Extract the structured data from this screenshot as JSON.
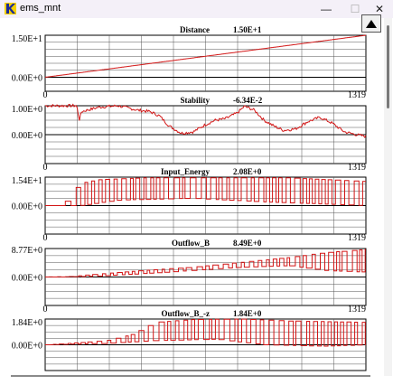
{
  "window": {
    "title": "ems_mnt",
    "minimize_icon": "minimize-icon",
    "maximize_icon": "maximize-icon",
    "close_icon": "close-icon",
    "close_glyph": "✕",
    "minimize_glyph": "—",
    "maximize_glyph": "☐"
  },
  "toolbar": {
    "scroll_up_icon": "triangle-up-icon"
  },
  "colors": {
    "trace": "#d21414",
    "grid": "#000000",
    "zero_line": "#000000"
  },
  "chart_data": [
    {
      "type": "line",
      "title": "Distance",
      "value_label": "1.50E+1",
      "y_tick_labels": [
        "1.50E+1",
        "0.00E+0"
      ],
      "x_tick_labels": [
        "0",
        "1319"
      ],
      "xlim": [
        0,
        1319
      ],
      "ylim": [
        -5,
        15
      ],
      "series": [
        {
          "values": [
            [
              0,
              0
            ],
            [
              1319,
              15
            ]
          ],
          "step": false
        }
      ]
    },
    {
      "type": "line",
      "title": "Stability",
      "value_label": "-6.34E-2",
      "y_tick_labels": [
        "1.00E+0",
        "0.00E+0"
      ],
      "x_tick_labels": [
        "0",
        "1319"
      ],
      "xlim": [
        0,
        1319
      ],
      "ylim": [
        -1,
        1
      ],
      "series": [
        {
          "values": [
            [
              0,
              1
            ],
            [
              130,
              1
            ],
            [
              140,
              0.5
            ],
            [
              150,
              0.8
            ],
            [
              220,
              0.95
            ],
            [
              300,
              1.0
            ],
            [
              380,
              0.85
            ],
            [
              430,
              0.8
            ],
            [
              470,
              0.65
            ],
            [
              510,
              0.3
            ],
            [
              560,
              0.05
            ],
            [
              610,
              0.1
            ],
            [
              660,
              0.35
            ],
            [
              700,
              0.5
            ],
            [
              740,
              0.55
            ],
            [
              790,
              0.75
            ],
            [
              820,
              0.98
            ],
            [
              860,
              0.85
            ],
            [
              900,
              0.5
            ],
            [
              940,
              0.3
            ],
            [
              980,
              0.15
            ],
            [
              1030,
              0.2
            ],
            [
              1080,
              0.45
            ],
            [
              1130,
              0.6
            ],
            [
              1180,
              0.4
            ],
            [
              1230,
              0.1
            ],
            [
              1280,
              0.0
            ],
            [
              1319,
              -0.06
            ]
          ],
          "step": false,
          "noise": 0.05
        }
      ]
    },
    {
      "type": "line",
      "title": "Input_Energy",
      "value_label": "2.08E+0",
      "y_tick_labels": [
        "1.54E+1",
        "0.00E+0"
      ],
      "x_tick_labels": [
        "0",
        "1319"
      ],
      "xlim": [
        0,
        1319
      ],
      "ylim": [
        -15.4,
        15.4
      ],
      "series": [
        {
          "values": [
            [
              0,
              0
            ],
            [
              60,
              0
            ],
            [
              80,
              2
            ],
            [
              100,
              5
            ],
            [
              140,
              12
            ],
            [
              220,
              14
            ],
            [
              400,
              15
            ],
            [
              700,
              15
            ],
            [
              1000,
              15
            ],
            [
              1319,
              13
            ]
          ],
          "step": true,
          "oscillate": true,
          "low": [
            [
              0,
              0
            ],
            [
              140,
              0
            ],
            [
              300,
              3
            ],
            [
              600,
              4
            ],
            [
              900,
              2
            ],
            [
              1319,
              0
            ]
          ]
        }
      ]
    },
    {
      "type": "line",
      "title": "Outflow_B",
      "value_label": "8.49E+0",
      "y_tick_labels": [
        "8.77E+0",
        "0.00E+0"
      ],
      "x_tick_labels": [
        "0",
        "1319"
      ],
      "xlim": [
        0,
        1319
      ],
      "ylim": [
        -8.77,
        8.77
      ],
      "series": [
        {
          "values": [
            [
              0,
              0
            ],
            [
              80,
              0
            ],
            [
              200,
              0.8
            ],
            [
              400,
              2
            ],
            [
              600,
              3
            ],
            [
              800,
              4.5
            ],
            [
              1000,
              6
            ],
            [
              1150,
              7.5
            ],
            [
              1319,
              8.5
            ]
          ],
          "step": true,
          "oscillate": true,
          "low": [
            [
              0,
              0
            ],
            [
              200,
              0.2
            ],
            [
              500,
              1.5
            ],
            [
              800,
              3
            ],
            [
              1000,
              3.5
            ],
            [
              1150,
              2
            ],
            [
              1319,
              1.5
            ]
          ]
        }
      ]
    },
    {
      "type": "line",
      "title": "Outflow_B_-z",
      "value_label": "1.84E+0",
      "y_tick_labels": [
        "1.84E+0",
        "0.00E+0"
      ],
      "x_tick_labels": [
        "0",
        "1319"
      ],
      "xlim": [
        0,
        1319
      ],
      "ylim": [
        -1.84,
        1.84
      ],
      "series": [
        {
          "values": [
            [
              0,
              0
            ],
            [
              100,
              0.1
            ],
            [
              250,
              0.3
            ],
            [
              350,
              0.7
            ],
            [
              450,
              1.6
            ],
            [
              600,
              1.8
            ],
            [
              800,
              1.84
            ],
            [
              1000,
              1.7
            ],
            [
              1319,
              1.6
            ]
          ],
          "step": true,
          "oscillate": true,
          "low": [
            [
              0,
              0
            ],
            [
              250,
              0.1
            ],
            [
              450,
              0.3
            ],
            [
              700,
              0.4
            ],
            [
              900,
              0.0
            ],
            [
              1150,
              -0.1
            ],
            [
              1319,
              0
            ]
          ]
        }
      ]
    }
  ]
}
